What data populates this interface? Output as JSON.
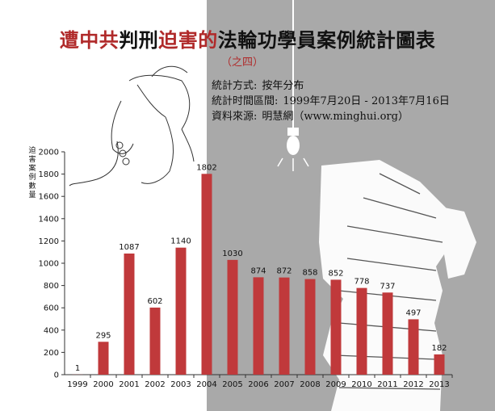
{
  "title": {
    "red_part_1": "遭中共",
    "black_part_1": "判刑",
    "red_part_2": "迫害的",
    "black_part_2": "法輪功學員案例統計圖表"
  },
  "subtitle": "（之四）",
  "info": {
    "method_label": "統計方式:",
    "method_value": "按年分布",
    "period_label": "統計时間區間:",
    "period_value": "1999年7月20日 - 2013年7月16日",
    "source_label": "資料來源:",
    "source_value": "明慧網（www.minghui.org）"
  },
  "colors": {
    "bar": "#c0393b",
    "title_red": "#b02a2a",
    "title_black": "#111111",
    "right_panel": "#a9a9a9"
  },
  "chart_data": {
    "type": "bar",
    "categories": [
      "1999",
      "2000",
      "2001",
      "2002",
      "2003",
      "2004",
      "2005",
      "2006",
      "2007",
      "2008",
      "2009",
      "2010",
      "2011",
      "2012",
      "2013"
    ],
    "values": [
      1,
      295,
      1087,
      602,
      1140,
      1802,
      1030,
      874,
      872,
      858,
      852,
      778,
      737,
      497,
      182
    ],
    "ylabel": "迫害案例數量",
    "xlabel": "",
    "ylim": [
      0,
      2000
    ],
    "yticks": [
      0,
      200,
      400,
      600,
      800,
      1000,
      1200,
      1400,
      1600,
      1800,
      2000
    ],
    "grid": false,
    "data_labels": true
  }
}
